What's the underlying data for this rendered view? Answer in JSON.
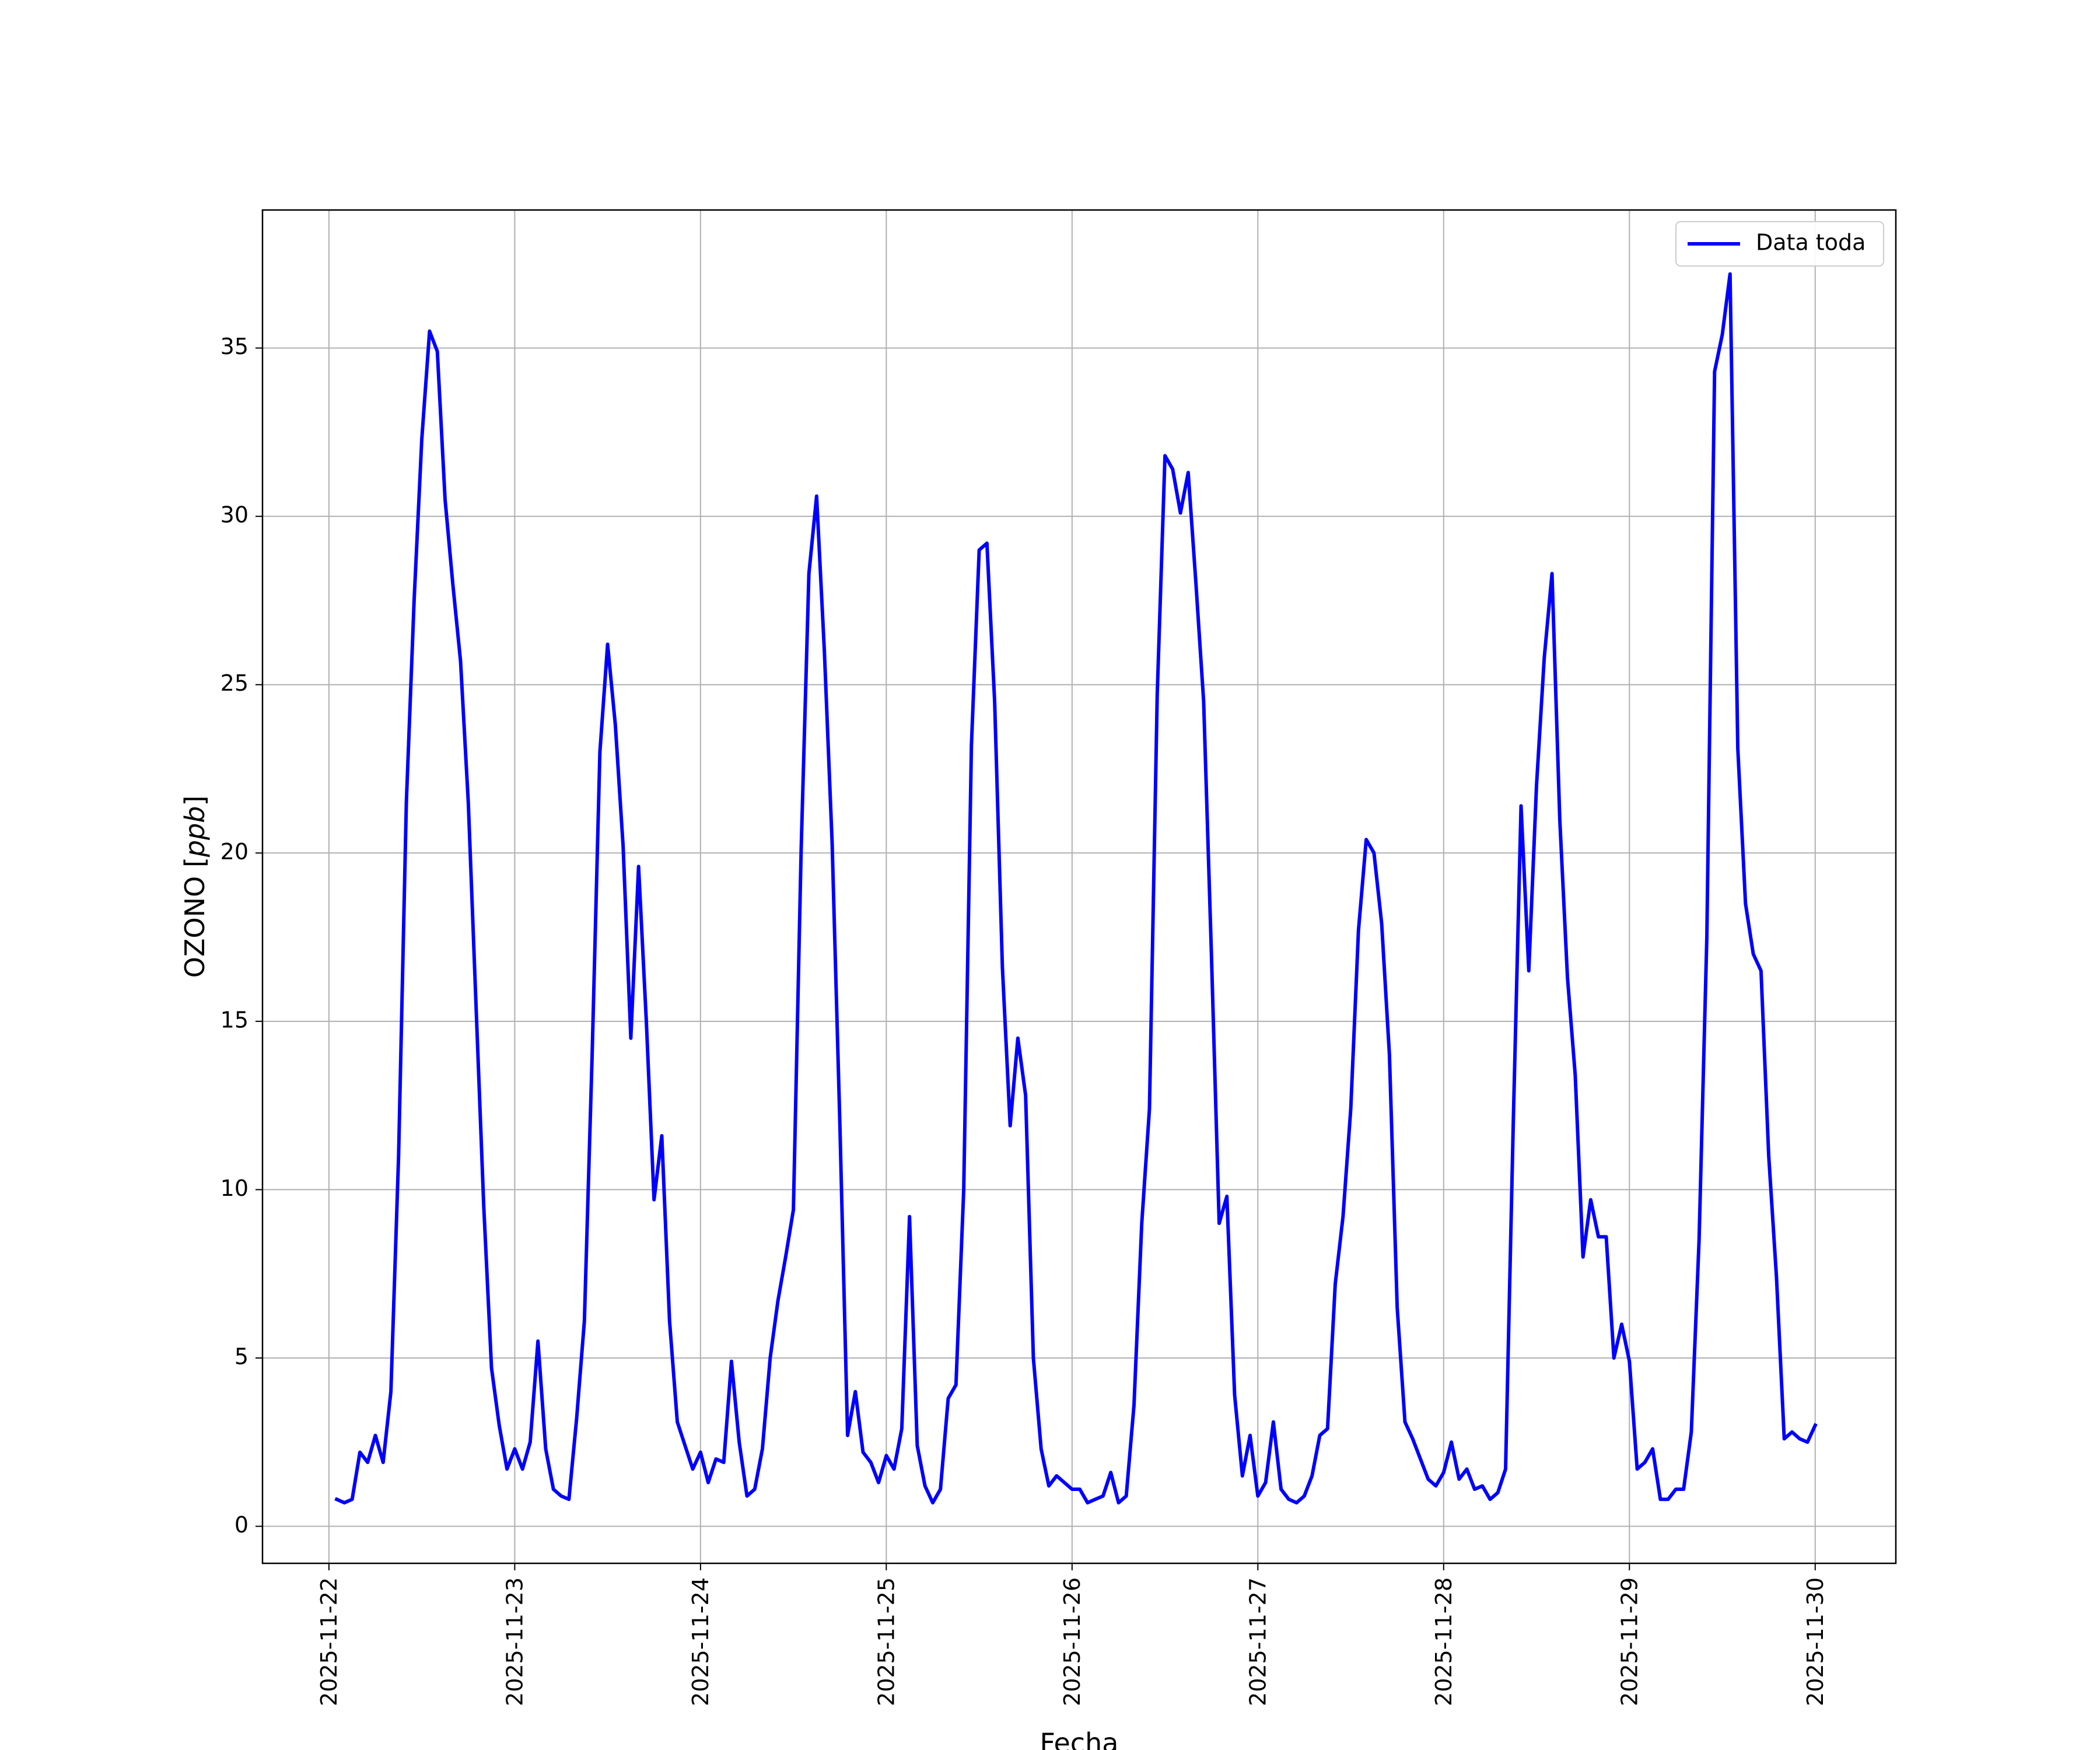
{
  "chart_data": {
    "type": "line",
    "title": "",
    "xlabel": "Fecha",
    "ylabel": "OZONO [ppb]",
    "ylabel_parts": {
      "main": "OZONO ",
      "open": "[",
      "unit": "ppb",
      "close": "]"
    },
    "x_tick_labels": [
      "2025-11-22",
      "2025-11-23",
      "2025-11-24",
      "2025-11-25",
      "2025-11-26",
      "2025-11-27",
      "2025-11-28",
      "2025-11-29",
      "2025-11-30"
    ],
    "y_ticks": [
      0,
      5,
      10,
      15,
      20,
      25,
      30,
      35
    ],
    "xlim": [
      "2025-11-21T15:25",
      "2025-11-30T10:25"
    ],
    "ylim": [
      -1.1,
      39.1
    ],
    "grid": true,
    "legend": {
      "position": "top-right",
      "entries": [
        "Data toda"
      ]
    },
    "series": [
      {
        "name": "Data toda",
        "color": "#0000ff",
        "points": [
          [
            "2025-11-22T01:00",
            0.8
          ],
          [
            "2025-11-22T02:00",
            0.7
          ],
          [
            "2025-11-22T03:00",
            0.8
          ],
          [
            "2025-11-22T04:00",
            2.2
          ],
          [
            "2025-11-22T05:00",
            1.9
          ],
          [
            "2025-11-22T06:00",
            2.7
          ],
          [
            "2025-11-22T07:00",
            1.9
          ],
          [
            "2025-11-22T08:00",
            4.0
          ],
          [
            "2025-11-22T09:00",
            11.0
          ],
          [
            "2025-11-22T10:00",
            21.5
          ],
          [
            "2025-11-22T11:00",
            27.5
          ],
          [
            "2025-11-22T12:00",
            32.3
          ],
          [
            "2025-11-22T13:00",
            35.5
          ],
          [
            "2025-11-22T14:00",
            34.9
          ],
          [
            "2025-11-22T15:00",
            30.5
          ],
          [
            "2025-11-22T16:00",
            28.0
          ],
          [
            "2025-11-22T17:00",
            25.7
          ],
          [
            "2025-11-22T18:00",
            21.5
          ],
          [
            "2025-11-22T19:00",
            15.5
          ],
          [
            "2025-11-22T20:00",
            9.5
          ],
          [
            "2025-11-22T21:00",
            4.7
          ],
          [
            "2025-11-22T22:00",
            3.0
          ],
          [
            "2025-11-22T23:00",
            1.7
          ],
          [
            "2025-11-23T00:00",
            2.3
          ],
          [
            "2025-11-23T01:00",
            1.7
          ],
          [
            "2025-11-23T02:00",
            2.5
          ],
          [
            "2025-11-23T03:00",
            5.5
          ],
          [
            "2025-11-23T04:00",
            2.3
          ],
          [
            "2025-11-23T05:00",
            1.1
          ],
          [
            "2025-11-23T06:00",
            0.9
          ],
          [
            "2025-11-23T07:00",
            0.8
          ],
          [
            "2025-11-23T08:00",
            3.2
          ],
          [
            "2025-11-23T09:00",
            6.1
          ],
          [
            "2025-11-23T10:00",
            14.0
          ],
          [
            "2025-11-23T11:00",
            23.0
          ],
          [
            "2025-11-23T12:00",
            26.2
          ],
          [
            "2025-11-23T13:00",
            23.8
          ],
          [
            "2025-11-23T14:00",
            20.2
          ],
          [
            "2025-11-23T15:00",
            14.5
          ],
          [
            "2025-11-23T16:00",
            19.6
          ],
          [
            "2025-11-23T17:00",
            15.0
          ],
          [
            "2025-11-23T18:00",
            9.7
          ],
          [
            "2025-11-23T19:00",
            11.6
          ],
          [
            "2025-11-23T20:00",
            6.1
          ],
          [
            "2025-11-23T21:00",
            3.1
          ],
          [
            "2025-11-23T22:00",
            2.4
          ],
          [
            "2025-11-23T23:00",
            1.7
          ],
          [
            "2025-11-24T00:00",
            2.2
          ],
          [
            "2025-11-24T01:00",
            1.3
          ],
          [
            "2025-11-24T02:00",
            2.0
          ],
          [
            "2025-11-24T03:00",
            1.9
          ],
          [
            "2025-11-24T04:00",
            4.9
          ],
          [
            "2025-11-24T05:00",
            2.5
          ],
          [
            "2025-11-24T06:00",
            0.9
          ],
          [
            "2025-11-24T07:00",
            1.1
          ],
          [
            "2025-11-24T08:00",
            2.3
          ],
          [
            "2025-11-24T09:00",
            5.0
          ],
          [
            "2025-11-24T10:00",
            6.7
          ],
          [
            "2025-11-24T11:00",
            8.0
          ],
          [
            "2025-11-24T12:00",
            9.4
          ],
          [
            "2025-11-24T13:00",
            20.1
          ],
          [
            "2025-11-24T14:00",
            28.3
          ],
          [
            "2025-11-24T15:00",
            30.6
          ],
          [
            "2025-11-24T16:00",
            26.0
          ],
          [
            "2025-11-24T17:00",
            20.3
          ],
          [
            "2025-11-24T18:00",
            12.0
          ],
          [
            "2025-11-24T19:00",
            2.7
          ],
          [
            "2025-11-24T20:00",
            4.0
          ],
          [
            "2025-11-24T21:00",
            2.2
          ],
          [
            "2025-11-24T22:00",
            1.9
          ],
          [
            "2025-11-24T23:00",
            1.3
          ],
          [
            "2025-11-25T00:00",
            2.1
          ],
          [
            "2025-11-25T01:00",
            1.7
          ],
          [
            "2025-11-25T02:00",
            2.9
          ],
          [
            "2025-11-25T03:00",
            9.2
          ],
          [
            "2025-11-25T04:00",
            2.4
          ],
          [
            "2025-11-25T05:00",
            1.2
          ],
          [
            "2025-11-25T06:00",
            0.7
          ],
          [
            "2025-11-25T07:00",
            1.1
          ],
          [
            "2025-11-25T08:00",
            3.8
          ],
          [
            "2025-11-25T09:00",
            4.2
          ],
          [
            "2025-11-25T10:00",
            10.0
          ],
          [
            "2025-11-25T11:00",
            23.2
          ],
          [
            "2025-11-25T12:00",
            29.0
          ],
          [
            "2025-11-25T13:00",
            29.2
          ],
          [
            "2025-11-25T14:00",
            24.5
          ],
          [
            "2025-11-25T15:00",
            16.6
          ],
          [
            "2025-11-25T16:00",
            11.9
          ],
          [
            "2025-11-25T17:00",
            14.5
          ],
          [
            "2025-11-25T18:00",
            12.8
          ],
          [
            "2025-11-25T19:00",
            5.0
          ],
          [
            "2025-11-25T20:00",
            2.3
          ],
          [
            "2025-11-25T21:00",
            1.2
          ],
          [
            "2025-11-25T22:00",
            1.5
          ],
          [
            "2025-11-25T23:00",
            1.3
          ],
          [
            "2025-11-26T00:00",
            1.1
          ],
          [
            "2025-11-26T01:00",
            1.1
          ],
          [
            "2025-11-26T02:00",
            0.7
          ],
          [
            "2025-11-26T03:00",
            0.8
          ],
          [
            "2025-11-26T04:00",
            0.9
          ],
          [
            "2025-11-26T05:00",
            1.6
          ],
          [
            "2025-11-26T06:00",
            0.7
          ],
          [
            "2025-11-26T07:00",
            0.9
          ],
          [
            "2025-11-26T08:00",
            3.6
          ],
          [
            "2025-11-26T09:00",
            9.0
          ],
          [
            "2025-11-26T10:00",
            12.4
          ],
          [
            "2025-11-26T11:00",
            24.7
          ],
          [
            "2025-11-26T12:00",
            31.8
          ],
          [
            "2025-11-26T13:00",
            31.4
          ],
          [
            "2025-11-26T14:00",
            30.1
          ],
          [
            "2025-11-26T15:00",
            31.3
          ],
          [
            "2025-11-26T16:00",
            28.0
          ],
          [
            "2025-11-26T17:00",
            24.5
          ],
          [
            "2025-11-26T18:00",
            17.0
          ],
          [
            "2025-11-26T19:00",
            9.0
          ],
          [
            "2025-11-26T20:00",
            9.8
          ],
          [
            "2025-11-26T21:00",
            3.9
          ],
          [
            "2025-11-26T22:00",
            1.5
          ],
          [
            "2025-11-26T23:00",
            2.7
          ],
          [
            "2025-11-27T00:00",
            0.9
          ],
          [
            "2025-11-27T01:00",
            1.3
          ],
          [
            "2025-11-27T02:00",
            3.1
          ],
          [
            "2025-11-27T03:00",
            1.1
          ],
          [
            "2025-11-27T04:00",
            0.8
          ],
          [
            "2025-11-27T05:00",
            0.7
          ],
          [
            "2025-11-27T06:00",
            0.9
          ],
          [
            "2025-11-27T07:00",
            1.5
          ],
          [
            "2025-11-27T08:00",
            2.7
          ],
          [
            "2025-11-27T09:00",
            2.9
          ],
          [
            "2025-11-27T10:00",
            7.2
          ],
          [
            "2025-11-27T11:00",
            9.2
          ],
          [
            "2025-11-27T12:00",
            12.4
          ],
          [
            "2025-11-27T13:00",
            17.7
          ],
          [
            "2025-11-27T14:00",
            20.4
          ],
          [
            "2025-11-27T15:00",
            20.0
          ],
          [
            "2025-11-27T16:00",
            17.9
          ],
          [
            "2025-11-27T17:00",
            14.0
          ],
          [
            "2025-11-27T18:00",
            6.5
          ],
          [
            "2025-11-27T19:00",
            3.1
          ],
          [
            "2025-11-27T20:00",
            2.6
          ],
          [
            "2025-11-27T21:00",
            2.0
          ],
          [
            "2025-11-27T22:00",
            1.4
          ],
          [
            "2025-11-27T23:00",
            1.2
          ],
          [
            "2025-11-28T00:00",
            1.6
          ],
          [
            "2025-11-28T01:00",
            2.5
          ],
          [
            "2025-11-28T02:00",
            1.4
          ],
          [
            "2025-11-28T03:00",
            1.7
          ],
          [
            "2025-11-28T04:00",
            1.1
          ],
          [
            "2025-11-28T05:00",
            1.2
          ],
          [
            "2025-11-28T06:00",
            0.8
          ],
          [
            "2025-11-28T07:00",
            1.0
          ],
          [
            "2025-11-28T08:00",
            1.7
          ],
          [
            "2025-11-28T09:00",
            12.0
          ],
          [
            "2025-11-28T10:00",
            21.4
          ],
          [
            "2025-11-28T11:00",
            16.5
          ],
          [
            "2025-11-28T12:00",
            22.0
          ],
          [
            "2025-11-28T13:00",
            25.8
          ],
          [
            "2025-11-28T14:00",
            28.3
          ],
          [
            "2025-11-28T15:00",
            21.0
          ],
          [
            "2025-11-28T16:00",
            16.3
          ],
          [
            "2025-11-28T17:00",
            13.4
          ],
          [
            "2025-11-28T18:00",
            8.0
          ],
          [
            "2025-11-28T19:00",
            9.7
          ],
          [
            "2025-11-28T20:00",
            8.6
          ],
          [
            "2025-11-28T21:00",
            8.6
          ],
          [
            "2025-11-28T22:00",
            5.0
          ],
          [
            "2025-11-28T23:00",
            6.0
          ],
          [
            "2025-11-29T00:00",
            4.9
          ],
          [
            "2025-11-29T01:00",
            1.7
          ],
          [
            "2025-11-29T02:00",
            1.9
          ],
          [
            "2025-11-29T03:00",
            2.3
          ],
          [
            "2025-11-29T04:00",
            0.8
          ],
          [
            "2025-11-29T05:00",
            0.8
          ],
          [
            "2025-11-29T06:00",
            1.1
          ],
          [
            "2025-11-29T07:00",
            1.1
          ],
          [
            "2025-11-29T08:00",
            2.8
          ],
          [
            "2025-11-29T09:00",
            8.5
          ],
          [
            "2025-11-29T10:00",
            17.5
          ],
          [
            "2025-11-29T11:00",
            34.3
          ],
          [
            "2025-11-29T12:00",
            35.4
          ],
          [
            "2025-11-29T13:00",
            37.2
          ],
          [
            "2025-11-29T14:00",
            23.1
          ],
          [
            "2025-11-29T15:00",
            18.5
          ],
          [
            "2025-11-29T16:00",
            17.0
          ],
          [
            "2025-11-29T17:00",
            16.5
          ],
          [
            "2025-11-29T18:00",
            11.0
          ],
          [
            "2025-11-29T19:00",
            7.4
          ],
          [
            "2025-11-29T20:00",
            2.6
          ],
          [
            "2025-11-29T21:00",
            2.8
          ],
          [
            "2025-11-29T22:00",
            2.6
          ],
          [
            "2025-11-29T23:00",
            2.5
          ],
          [
            "2025-11-30T00:00",
            3.0
          ]
        ]
      }
    ]
  }
}
